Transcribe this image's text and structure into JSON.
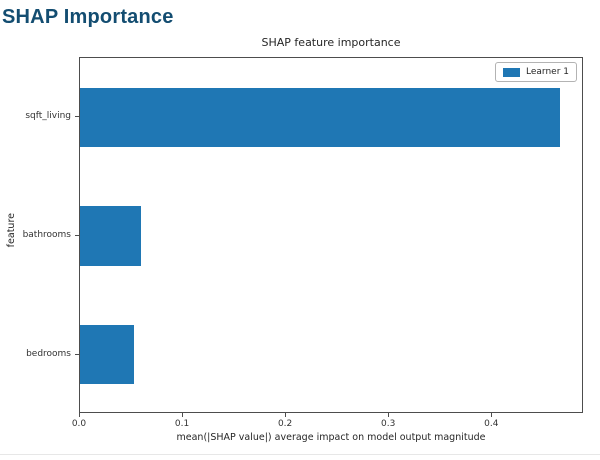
{
  "page": {
    "title": "SHAP Importance",
    "title_color": "#134d71"
  },
  "chart_data": {
    "type": "bar",
    "orientation": "horizontal",
    "title": "SHAP feature importance",
    "xlabel": "mean(|SHAP value|) average impact on model output magnitude",
    "ylabel": "feature",
    "categories": [
      "sqft_living",
      "bathrooms",
      "bedrooms"
    ],
    "series": [
      {
        "name": "Learner 1",
        "color": "#1f77b4",
        "values": [
          0.466,
          0.059,
          0.052
        ]
      }
    ],
    "xlim": [
      0.0,
      0.489
    ],
    "xticks": [
      0.0,
      0.1,
      0.2,
      0.3,
      0.4
    ],
    "xtick_labels": [
      "0.0",
      "0.1",
      "0.2",
      "0.3",
      "0.4"
    ],
    "bar_height_fraction": 0.5,
    "grid": false,
    "legend": {
      "position": "upper right",
      "entries": [
        "Learner 1"
      ]
    }
  }
}
